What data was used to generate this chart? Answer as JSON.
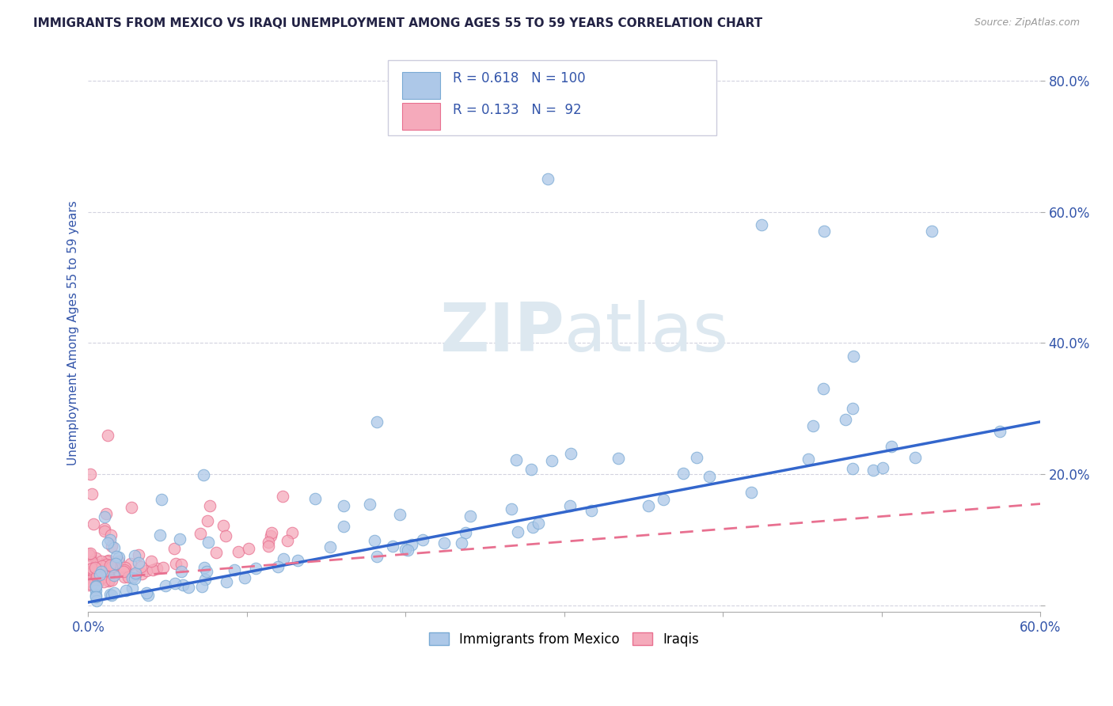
{
  "title": "IMMIGRANTS FROM MEXICO VS IRAQI UNEMPLOYMENT AMONG AGES 55 TO 59 YEARS CORRELATION CHART",
  "source": "Source: ZipAtlas.com",
  "ylabel": "Unemployment Among Ages 55 to 59 years",
  "xlim": [
    0.0,
    0.6
  ],
  "ylim": [
    -0.01,
    0.84
  ],
  "blue_R": 0.618,
  "blue_N": 100,
  "pink_R": 0.133,
  "pink_N": 92,
  "blue_color": "#adc8e8",
  "pink_color": "#f5aabb",
  "blue_edge": "#7aaad4",
  "pink_edge": "#e87090",
  "trend_blue": "#3366cc",
  "trend_pink": "#e87090",
  "label_color": "#3355aa",
  "title_color": "#222244",
  "grid_color": "#c8c8d8",
  "background_color": "#ffffff",
  "watermark_color": "#dde8f0",
  "blue_line_start_y": 0.005,
  "blue_line_end_y": 0.28,
  "pink_line_start_y": 0.04,
  "pink_line_end_y": 0.155
}
